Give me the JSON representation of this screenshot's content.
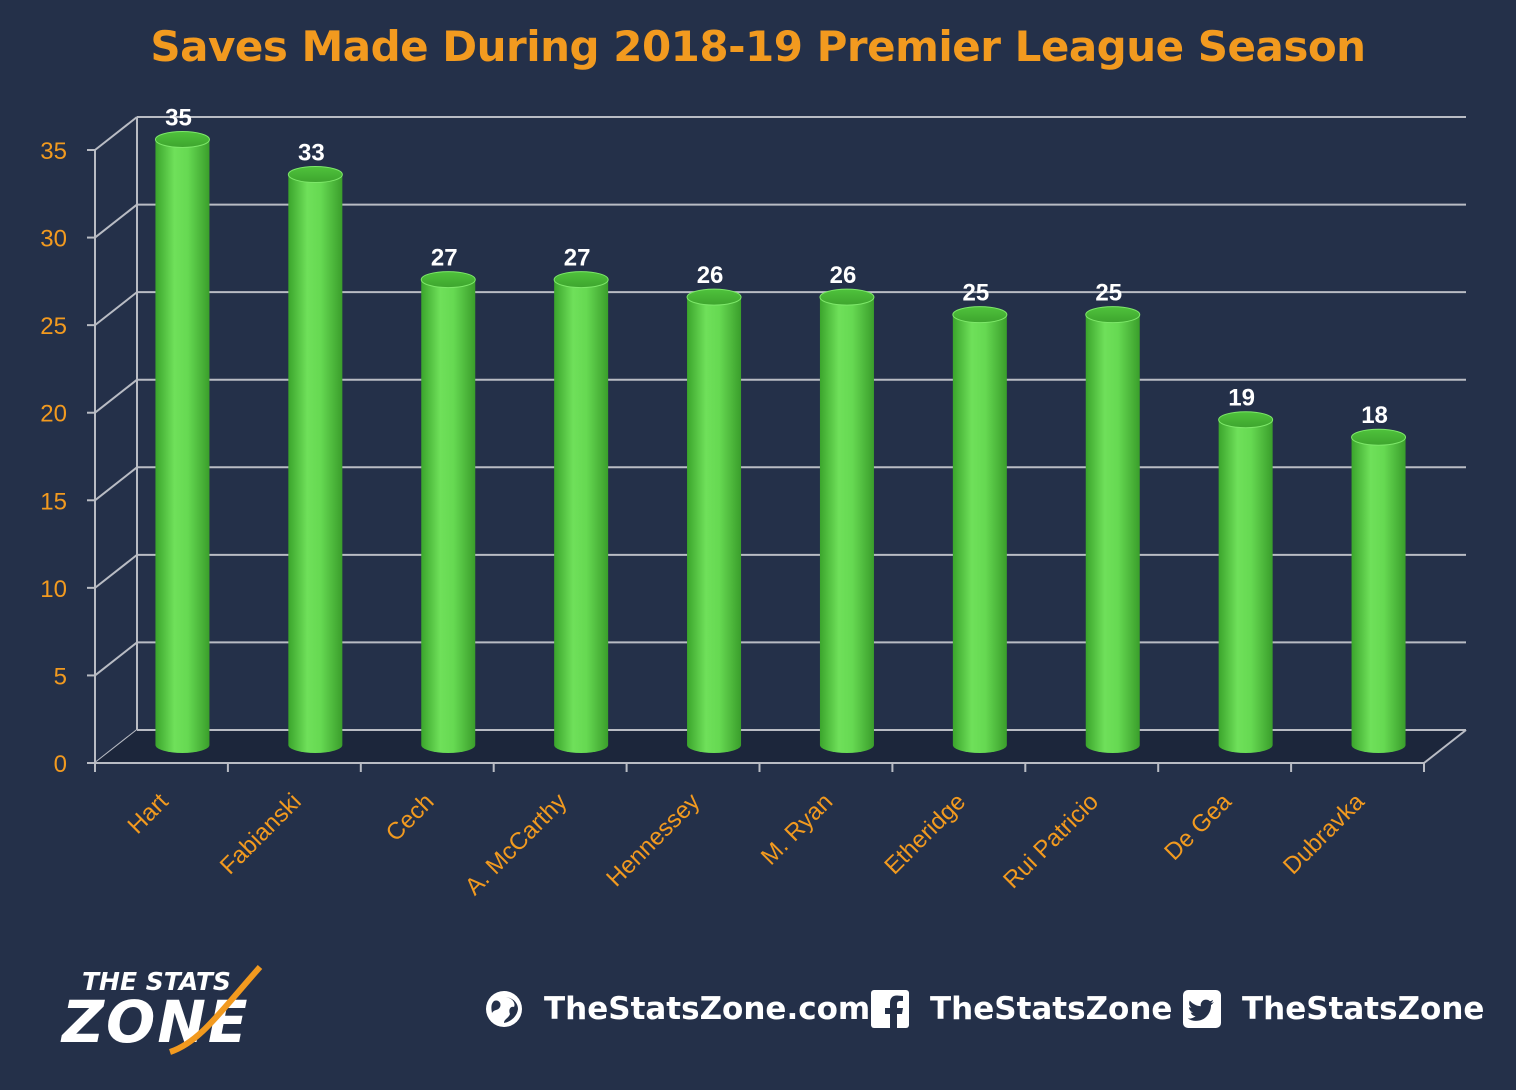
{
  "chart_data": {
    "type": "bar",
    "title": "Saves Made During 2018-19 Premier League Season",
    "categories": [
      "Hart",
      "Fabianski",
      "Cech",
      "A. McCarthy",
      "Hennessey",
      "M. Ryan",
      "Etheridge",
      "Rui Patricio",
      "De Gea",
      "Dubravka"
    ],
    "values": [
      35,
      33,
      27,
      27,
      26,
      26,
      25,
      25,
      19,
      18
    ],
    "ylim": [
      0,
      35
    ],
    "yticks": [
      "0",
      "5",
      "10",
      "15",
      "20",
      "25",
      "30",
      "35"
    ],
    "grid": true,
    "style": "3d-cylinder",
    "colors": {
      "background": "#243049",
      "bar": "#5ed44a",
      "text": "#f29a1f",
      "grid": "#b9bcc4",
      "data_label": "#ffffff"
    }
  },
  "footer": {
    "logo_line1": "THE STATS",
    "logo_line2": "ZONE",
    "website": "TheStatsZone.com",
    "facebook": "TheStatsZone",
    "twitter": "TheStatsZone",
    "icons": [
      "globe-icon",
      "facebook-icon",
      "twitter-icon"
    ]
  }
}
